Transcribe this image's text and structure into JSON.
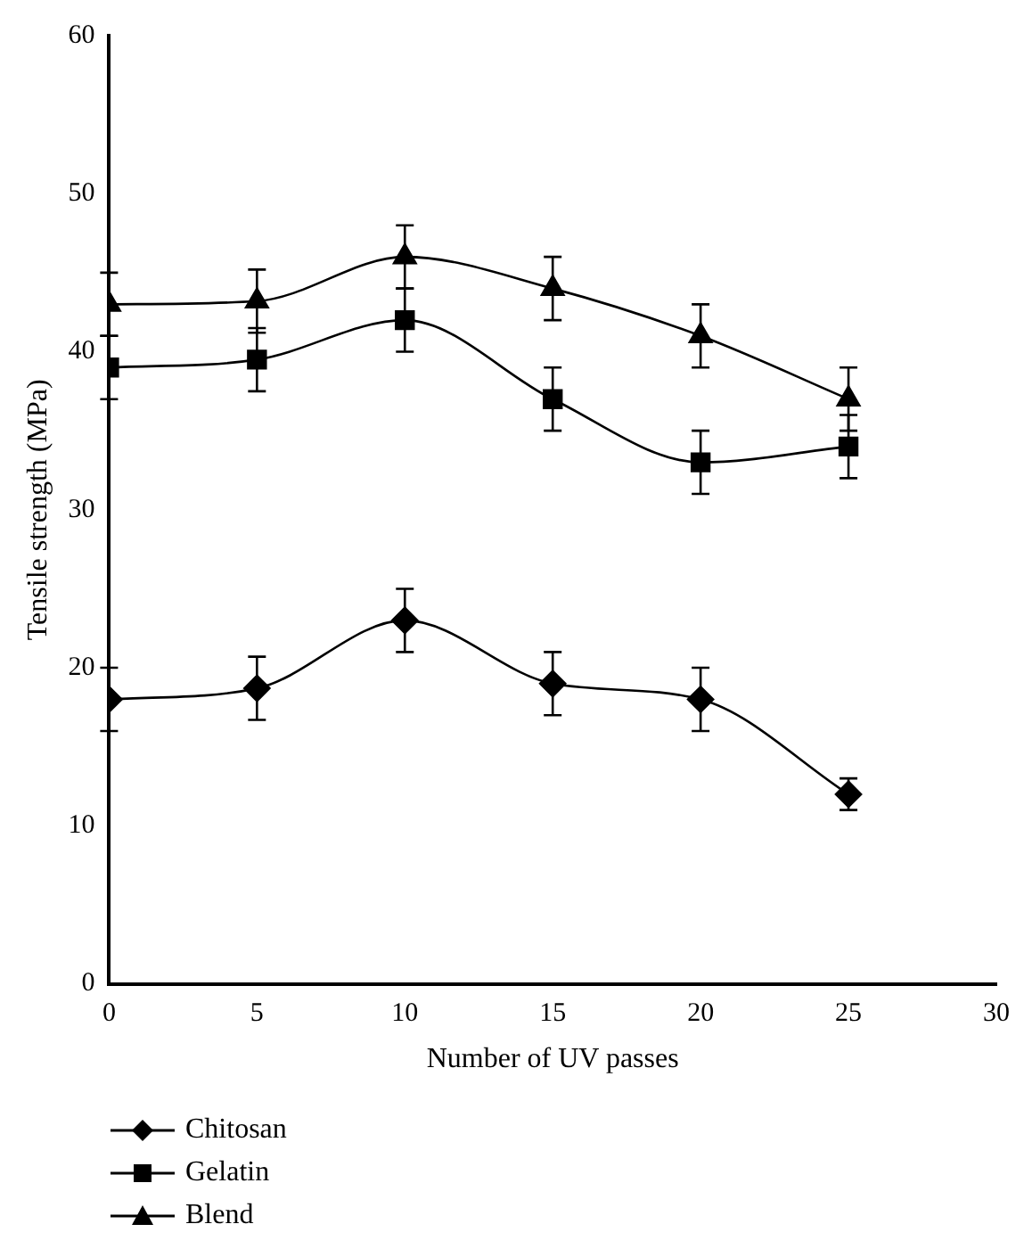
{
  "chart_data": {
    "type": "line",
    "xlabel": "Number of UV passes",
    "ylabel": "Tensile strength (MPa)",
    "x": [
      0,
      5,
      10,
      15,
      20,
      25
    ],
    "series": [
      {
        "name": "Chitosan",
        "color": "#000000",
        "marker": "diamond",
        "values": [
          18,
          18.7,
          23,
          19,
          18,
          12
        ],
        "errors": [
          2,
          2,
          2,
          2,
          2,
          1
        ]
      },
      {
        "name": "Gelatin",
        "color": "#000000",
        "marker": "square",
        "values": [
          39,
          39.5,
          42,
          37,
          33,
          34
        ],
        "errors": [
          2,
          2,
          2,
          2,
          2,
          2
        ]
      },
      {
        "name": "Blend",
        "color": "#000000",
        "marker": "triangle",
        "values": [
          43,
          43.2,
          46,
          44,
          41,
          37
        ],
        "errors": [
          2,
          2,
          2,
          2,
          2,
          2
        ]
      }
    ],
    "xlim": [
      0,
      30
    ],
    "xticks": [
      0,
      5,
      10,
      15,
      20,
      25,
      30
    ],
    "ylim": [
      0,
      60
    ],
    "yticks": [
      0,
      10,
      20,
      30,
      40,
      50,
      60
    ],
    "grid": false,
    "legend": "bottom",
    "line_style": "solid"
  }
}
